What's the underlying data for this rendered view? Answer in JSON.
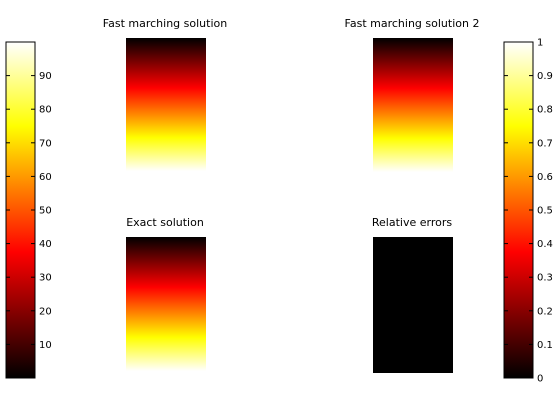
{
  "colormap": "hot",
  "hot_stops": [
    "#000000",
    "#ff0000",
    "#ffff00",
    "#ffffff"
  ],
  "chart_data": [
    {
      "type": "heatmap",
      "id": "fm1",
      "title": "Fast marching solution",
      "gradient": "vertical",
      "value_top": 0,
      "value_bottom": 100,
      "clim": [
        0,
        100
      ],
      "xlabel": "",
      "ylabel": ""
    },
    {
      "type": "heatmap",
      "id": "fm2",
      "title": "Fast marching solution 2",
      "gradient": "vertical",
      "value_top": 0,
      "value_bottom": 1,
      "clim": [
        0,
        1
      ],
      "xlabel": "",
      "ylabel": ""
    },
    {
      "type": "heatmap",
      "id": "exact",
      "title": "Exact solution",
      "gradient": "vertical",
      "value_top": 0,
      "value_bottom": 100,
      "clim": [
        0,
        100
      ],
      "xlabel": "",
      "ylabel": ""
    },
    {
      "type": "heatmap",
      "id": "relerr",
      "title": "Relative errors",
      "gradient": "uniform",
      "value_top": 0,
      "value_bottom": 0,
      "clim": [
        0,
        1
      ],
      "xlabel": "",
      "ylabel": ""
    }
  ],
  "colorbars": [
    {
      "id": "left",
      "range": [
        0,
        100
      ],
      "ticks": [
        10,
        20,
        30,
        40,
        50,
        60,
        70,
        80,
        90
      ],
      "tick_labels": [
        "10",
        "20",
        "30",
        "40",
        "50",
        "60",
        "70",
        "80",
        "90"
      ]
    },
    {
      "id": "right",
      "range": [
        0,
        1
      ],
      "ticks": [
        0,
        0.1,
        0.2,
        0.3,
        0.4,
        0.5,
        0.6,
        0.7,
        0.8,
        0.9,
        1
      ],
      "tick_labels": [
        "0",
        "0.1",
        "0.2",
        "0.3",
        "0.4",
        "0.5",
        "0.6",
        "0.7",
        "0.8",
        "0.9",
        "1"
      ]
    }
  ]
}
